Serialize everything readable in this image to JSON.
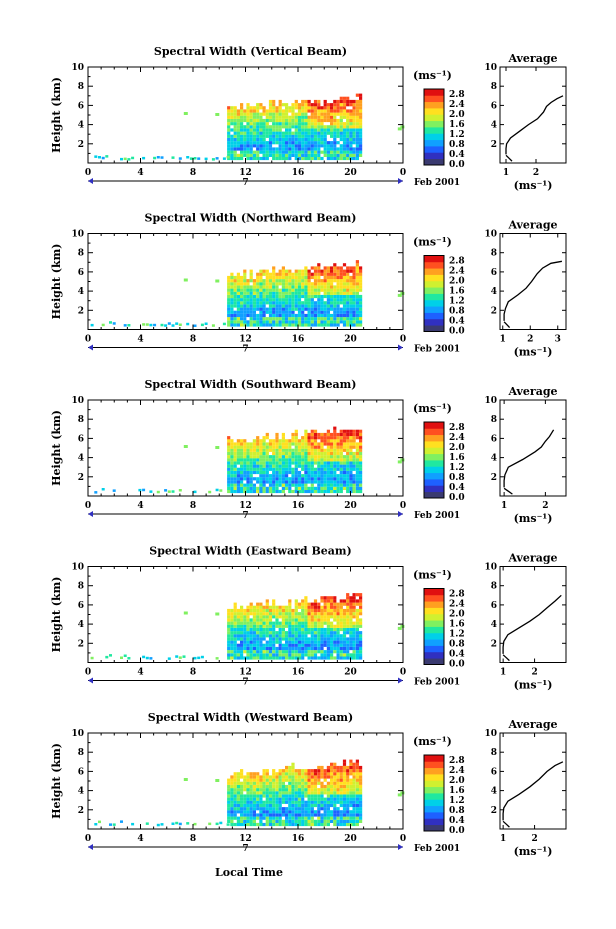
{
  "chart_data": {
    "type": "heatmap",
    "xlabel": "Local Time",
    "date_label": "Feb 2001",
    "day_label": "7",
    "ylabel": "Height (km)",
    "x_ticks": [
      "0",
      "4",
      "8",
      "12",
      "16",
      "20",
      "0"
    ],
    "x_range": [
      0,
      24
    ],
    "y_ticks": [
      "2",
      "4",
      "6",
      "8",
      "10"
    ],
    "y_range": [
      0,
      10
    ],
    "colorbar": {
      "unit": "(ms⁻¹)",
      "ticks": [
        "0.0",
        "0.4",
        "0.8",
        "1.2",
        "1.6",
        "2.0",
        "2.4",
        "2.8"
      ],
      "colors": [
        "#3a3a70",
        "#3030c0",
        "#1e60ff",
        "#10a0ff",
        "#00d0e8",
        "#20e8a0",
        "#80f060",
        "#d0f030",
        "#ffe020",
        "#ffa020",
        "#ff5020",
        "#e01010"
      ]
    },
    "panels": [
      {
        "title": "Spectral Width (Vertical Beam)",
        "average": {
          "title": "Average",
          "xlabel": "(ms⁻¹)",
          "x_ticks": [
            "1",
            "2"
          ],
          "xlim": [
            0.8,
            3.0
          ],
          "y_ticks": [
            "2",
            "4",
            "6",
            "8",
            "10"
          ],
          "profile": [
            [
              1.0,
              0.9
            ],
            [
              1.0,
              1.5
            ],
            [
              1.02,
              2.0
            ],
            [
              1.15,
              2.6
            ],
            [
              1.45,
              3.3
            ],
            [
              1.75,
              4.0
            ],
            [
              2.05,
              4.6
            ],
            [
              2.25,
              5.3
            ],
            [
              2.35,
              5.9
            ],
            [
              2.5,
              6.3
            ],
            [
              2.7,
              6.7
            ],
            [
              2.9,
              7.0
            ]
          ],
          "surface": [
            [
              1.0,
              0.8
            ],
            [
              1.1,
              0.5
            ],
            [
              1.2,
              0.2
            ]
          ]
        }
      },
      {
        "title": "Spectral Width (Northward Beam)",
        "average": {
          "title": "Average",
          "xlabel": "(ms⁻¹)",
          "x_ticks": [
            "1",
            "2",
            "3"
          ],
          "xlim": [
            0.9,
            3.3
          ],
          "y_ticks": [
            "2",
            "4",
            "6",
            "8",
            "10"
          ],
          "profile": [
            [
              1.05,
              0.9
            ],
            [
              1.05,
              1.6
            ],
            [
              1.1,
              2.2
            ],
            [
              1.2,
              2.9
            ],
            [
              1.55,
              3.6
            ],
            [
              1.85,
              4.3
            ],
            [
              2.05,
              5.0
            ],
            [
              2.25,
              5.8
            ],
            [
              2.45,
              6.4
            ],
            [
              2.75,
              6.9
            ],
            [
              3.15,
              7.1
            ]
          ],
          "surface": [
            [
              1.05,
              0.8
            ],
            [
              1.15,
              0.5
            ],
            [
              1.25,
              0.2
            ]
          ]
        }
      },
      {
        "title": "Spectral Width (Southward Beam)",
        "average": {
          "title": "Average",
          "xlabel": "(ms⁻¹)",
          "x_ticks": [
            "1",
            "2"
          ],
          "xlim": [
            0.9,
            2.5
          ],
          "y_ticks": [
            "2",
            "4",
            "6",
            "8",
            "10"
          ],
          "profile": [
            [
              1.0,
              0.9
            ],
            [
              1.0,
              1.6
            ],
            [
              1.02,
              2.2
            ],
            [
              1.1,
              3.0
            ],
            [
              1.45,
              3.8
            ],
            [
              1.75,
              4.6
            ],
            [
              1.9,
              5.1
            ],
            [
              2.0,
              5.7
            ],
            [
              2.1,
              6.2
            ],
            [
              2.2,
              6.9
            ]
          ],
          "surface": [
            [
              1.0,
              0.8
            ],
            [
              1.1,
              0.5
            ],
            [
              1.2,
              0.2
            ]
          ]
        }
      },
      {
        "title": "Spectral Width (Eastward Beam)",
        "average": {
          "title": "Average",
          "xlabel": "(ms⁻¹)",
          "x_ticks": [
            "1",
            "2"
          ],
          "xlim": [
            0.9,
            3.0
          ],
          "y_ticks": [
            "2",
            "4",
            "6",
            "8",
            "10"
          ],
          "profile": [
            [
              1.0,
              0.9
            ],
            [
              1.0,
              1.6
            ],
            [
              1.02,
              2.2
            ],
            [
              1.15,
              2.9
            ],
            [
              1.5,
              3.6
            ],
            [
              1.85,
              4.3
            ],
            [
              2.15,
              5.0
            ],
            [
              2.4,
              5.7
            ],
            [
              2.65,
              6.4
            ],
            [
              2.85,
              7.0
            ]
          ],
          "surface": [
            [
              1.0,
              0.8
            ],
            [
              1.1,
              0.5
            ],
            [
              1.2,
              0.2
            ]
          ]
        }
      },
      {
        "title": "Spectral Width (Westward Beam)",
        "average": {
          "title": "Average",
          "xlabel": "(ms⁻¹)",
          "x_ticks": [
            "1",
            "2"
          ],
          "xlim": [
            0.9,
            3.0
          ],
          "y_ticks": [
            "2",
            "4",
            "6",
            "8",
            "10"
          ],
          "profile": [
            [
              1.0,
              0.9
            ],
            [
              1.0,
              1.6
            ],
            [
              1.02,
              2.2
            ],
            [
              1.15,
              2.9
            ],
            [
              1.5,
              3.6
            ],
            [
              1.85,
              4.4
            ],
            [
              2.15,
              5.2
            ],
            [
              2.4,
              6.0
            ],
            [
              2.65,
              6.6
            ],
            [
              2.9,
              7.0
            ]
          ],
          "surface": [
            [
              1.0,
              0.8
            ],
            [
              1.1,
              0.5
            ],
            [
              1.2,
              0.2
            ]
          ]
        }
      }
    ]
  }
}
